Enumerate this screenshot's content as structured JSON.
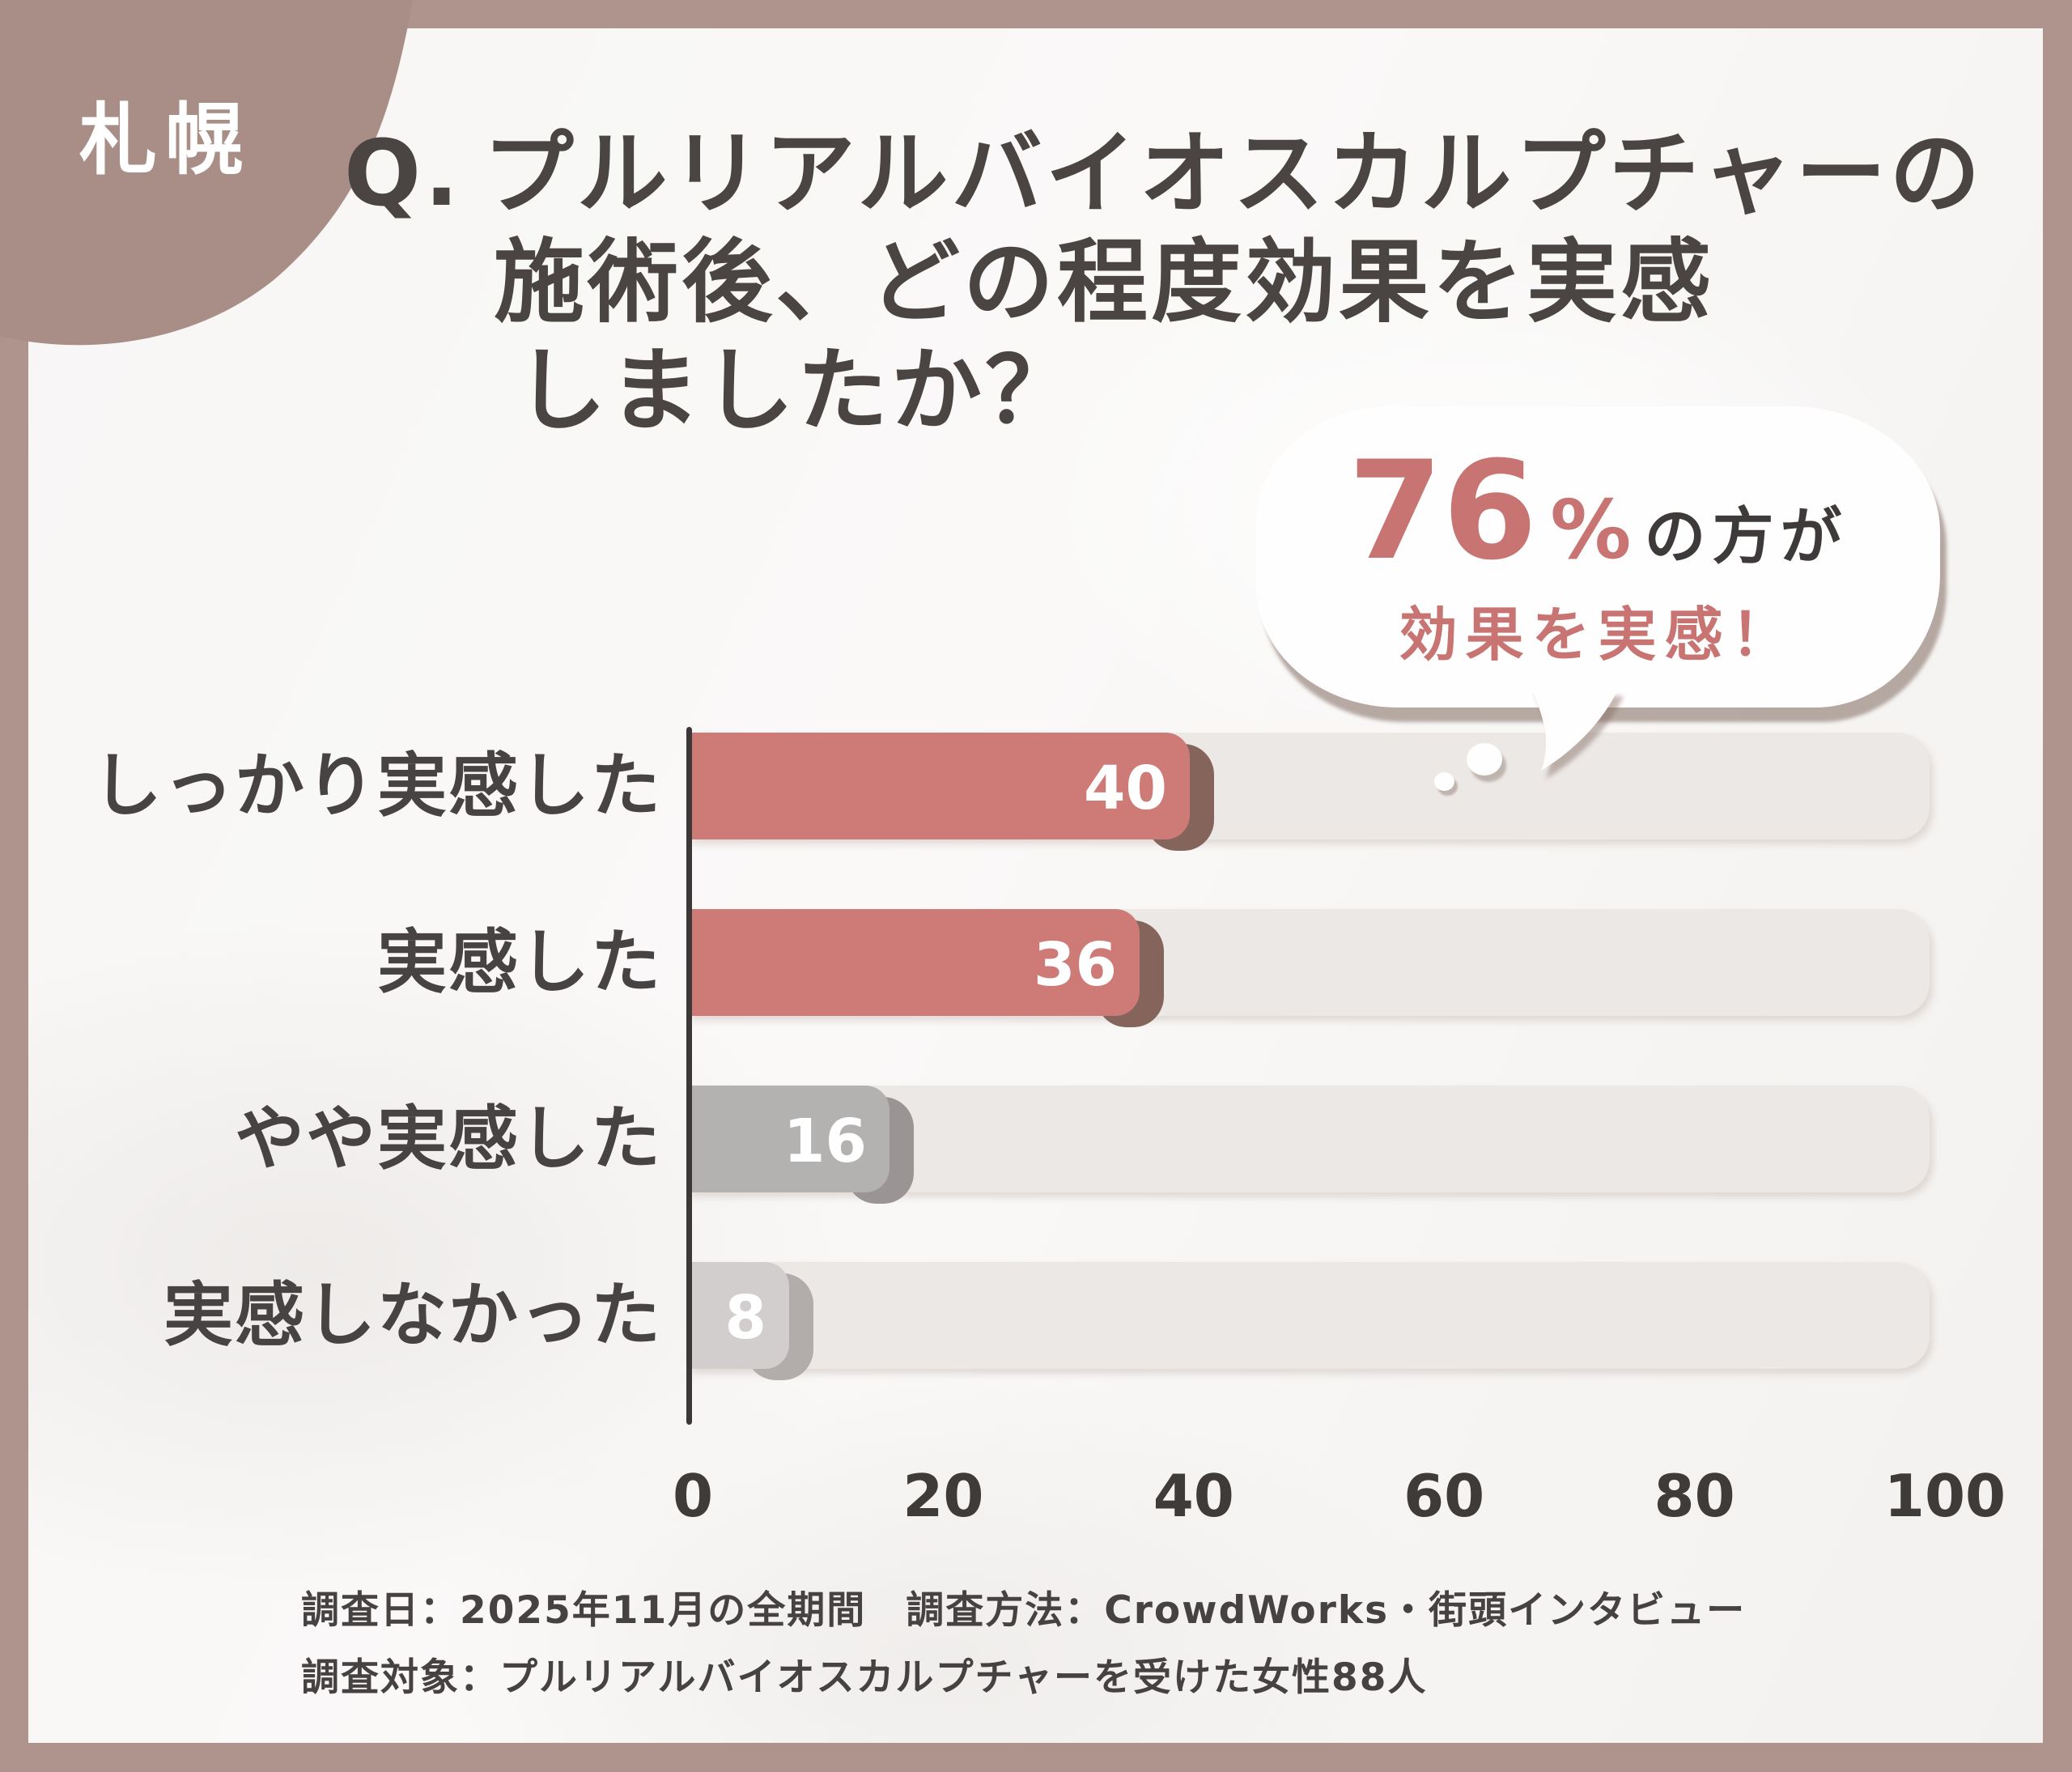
{
  "region_badge": "札幌",
  "title": {
    "prefix": "Q.",
    "line1": "プルリアルバイオスカルプチャーの",
    "line2": "施術後、どの程度効果を実感",
    "line3": "しましたか？"
  },
  "highlight_bubble": {
    "percent_value": "76",
    "percent_sign": "%",
    "percent_suffix": "の方が",
    "second_line": "効果を実感！"
  },
  "chart_data": {
    "type": "bar",
    "orientation": "horizontal",
    "title": "プルリアルバイオスカルプチャーの施術後、どの程度効果を実感しましたか？",
    "categories": [
      "しっかり実感した",
      "実感した",
      "やや実感した",
      "実感しなかった"
    ],
    "values": [
      40,
      36,
      16,
      8
    ],
    "value_labels": [
      "40",
      "36",
      "16",
      "8"
    ],
    "xlim": [
      0,
      100
    ],
    "x_ticks": [
      0,
      20,
      40,
      60,
      80,
      100
    ],
    "grid": false,
    "legend": false,
    "bar_colors": [
      "#ce7b78",
      "#ce7b78",
      "#b4b1b1",
      "#d1cecd"
    ],
    "bar_shadow_colors": [
      "#85645c",
      "#85645c",
      "#9a9594",
      "#b2adaa"
    ],
    "track_color": "#ece8e6",
    "axis_line_color": "#3b3837"
  },
  "footer": {
    "line1": "調査日：2025年11月の全期間　調査方法：CrowdWorks・街頭インタビュー",
    "line2": "調査対象：プルリアルバイオスカルプチャーを受けた女性88人"
  },
  "colors": {
    "frame": "#ae948c",
    "blob": "#a98e87",
    "content_bg": "#f8f7f6",
    "accent": "#c87472",
    "text_dark": "#474342",
    "value_text": "#ffffff",
    "bubble_bg": "#fffefe",
    "bubble_shadow": "#8d736a"
  }
}
